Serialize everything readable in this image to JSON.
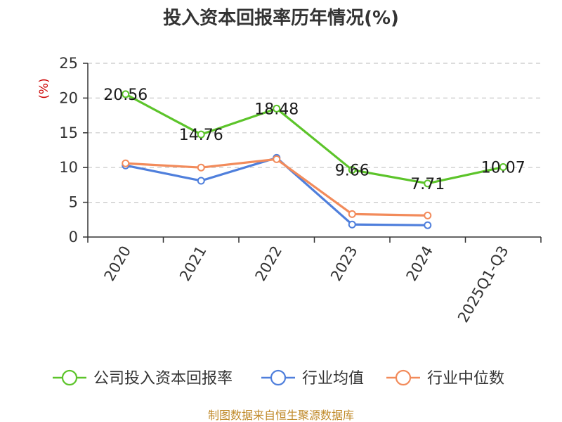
{
  "title": "投入资本回报率历年情况(%)",
  "source": "制图数据来自恒生聚源数据库",
  "chart_data": {
    "type": "line",
    "title": "投入资本回报率历年情况(%)",
    "ylabel": "(%)",
    "xlabel": "",
    "ylim": [
      0,
      25
    ],
    "yticks": [
      "0",
      "5",
      "10",
      "15",
      "20",
      "25"
    ],
    "categories": [
      "2020",
      "2021",
      "2022",
      "2023",
      "2024",
      "2025Q1-Q3"
    ],
    "grid": "horizontal-dashed",
    "legend_position": "bottom",
    "series": [
      {
        "name": "公司投入资本回报率",
        "color": "#5cc42a",
        "values": [
          20.56,
          14.76,
          18.48,
          9.66,
          7.71,
          10.07
        ],
        "labels": [
          "20.56",
          "14.76",
          "18.48",
          "9.66",
          "7.71",
          "10.07"
        ]
      },
      {
        "name": "行业均值",
        "color": "#4f7fdc",
        "values": [
          10.3,
          8.1,
          11.4,
          1.8,
          1.7,
          null
        ]
      },
      {
        "name": "行业中位数",
        "color": "#f28b5b",
        "values": [
          10.6,
          10.0,
          11.2,
          3.3,
          3.1,
          null
        ]
      }
    ]
  }
}
